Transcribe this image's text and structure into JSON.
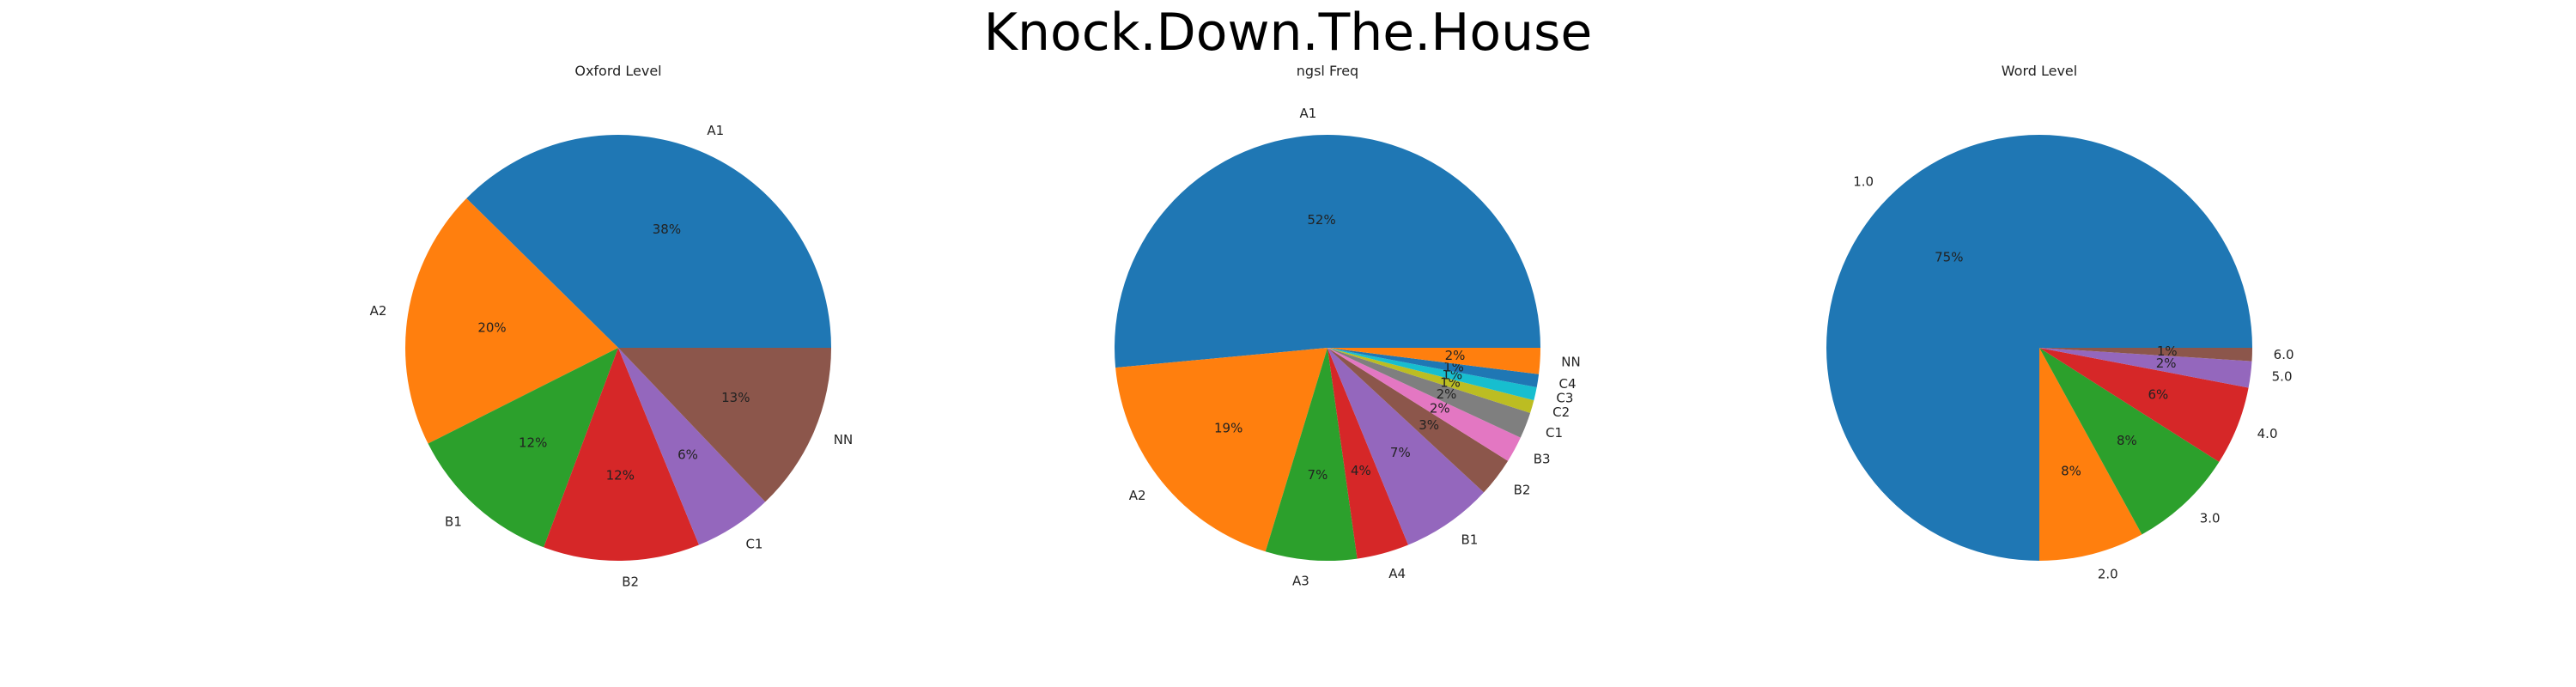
{
  "title": "Knock.Down.The.House",
  "chart_data": [
    {
      "type": "pie",
      "title": "Oxford Level",
      "categories": [
        "A1",
        "A2",
        "B1",
        "B2",
        "C1",
        "NN"
      ],
      "values": [
        38,
        20,
        12,
        12,
        6,
        13
      ],
      "percent_labels": [
        "38%",
        "20%",
        "12%",
        "12%",
        "6%",
        "13%"
      ],
      "colors": [
        "#1f77b4",
        "#ff7f0e",
        "#2ca02c",
        "#d62728",
        "#9467bd",
        "#8c564b"
      ]
    },
    {
      "type": "pie",
      "title": "ngsl Freq",
      "categories": [
        "A1",
        "A2",
        "A3",
        "A4",
        "B1",
        "B2",
        "B3",
        "C1",
        "C2",
        "C3",
        "C4",
        "NN"
      ],
      "values": [
        52,
        19,
        7,
        4,
        7,
        3,
        2,
        2,
        1,
        1,
        1,
        2
      ],
      "percent_labels": [
        "52%",
        "19%",
        "7%",
        "4%",
        "7%",
        "3%",
        "2%",
        "2%",
        "1%",
        "1%",
        "1%",
        "2%"
      ],
      "colors": [
        "#1f77b4",
        "#ff7f0e",
        "#2ca02c",
        "#d62728",
        "#9467bd",
        "#8c564b",
        "#e377c2",
        "#7f7f7f",
        "#bcbd22",
        "#17becf",
        "#1f77b4",
        "#ff7f0e"
      ]
    },
    {
      "type": "pie",
      "title": "Word Level",
      "categories": [
        "1.0",
        "2.0",
        "3.0",
        "4.0",
        "5.0",
        "6.0"
      ],
      "values": [
        75,
        8,
        8,
        6,
        2,
        1
      ],
      "percent_labels": [
        "75%",
        "8%",
        "8%",
        "6%",
        "2%",
        "1%"
      ],
      "colors": [
        "#1f77b4",
        "#ff7f0e",
        "#2ca02c",
        "#d62728",
        "#9467bd",
        "#8c564b"
      ]
    }
  ]
}
